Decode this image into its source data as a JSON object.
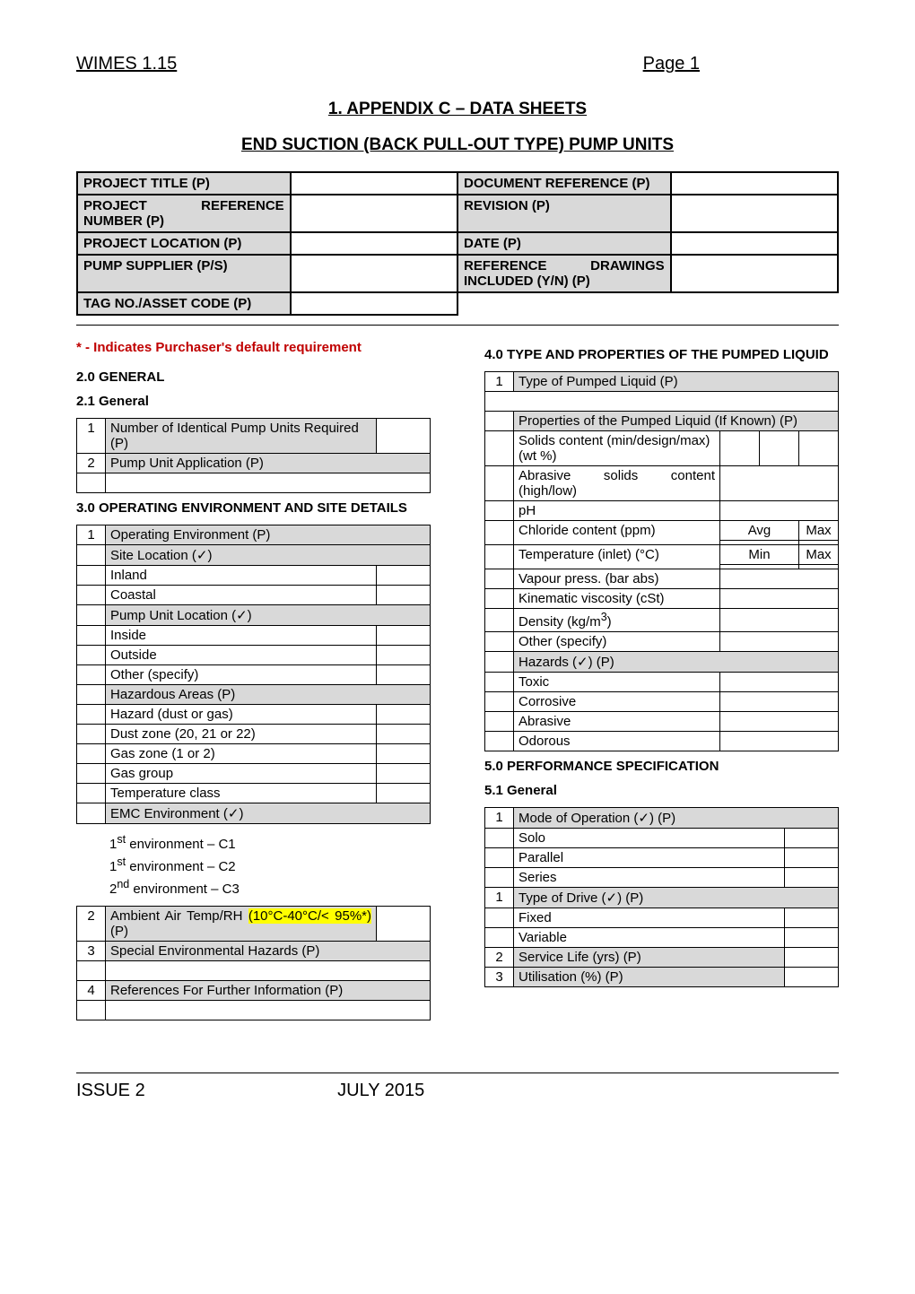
{
  "header": {
    "left": "WIMES 1.15",
    "right": "Page 1"
  },
  "title1": "1.  APPENDIX C – DATA SHEETS",
  "title2": "END SUCTION (BACK PULL-OUT TYPE) PUMP UNITS",
  "project": {
    "rows": [
      {
        "l1": "PROJECT TITLE (P)",
        "l2": "DOCUMENT REFERENCE (P)"
      },
      {
        "l1": "PROJECT REFERENCE NUMBER (P)",
        "l2": "REVISION (P)"
      },
      {
        "l1": "PROJECT LOCATION (P)",
        "l2": "DATE (P)"
      },
      {
        "l1": "PUMP SUPPLIER (P/S)",
        "l2": "REFERENCE DRAWINGS INCLUDED (Y/N) (P)"
      },
      {
        "l1": "TAG NO./ASSET CODE (P)",
        "l2": ""
      }
    ]
  },
  "note": "* - Indicates Purchaser's default requirement",
  "s2": {
    "head": "2.0 GENERAL",
    "sub": "2.1 General",
    "r1n": "1",
    "r1": "Number of Identical Pump Units Required (P)",
    "r2n": "2",
    "r2": "Pump Unit Application (P)"
  },
  "s3": {
    "head": "3.0 OPERATING ENVIRONMENT AND SITE DETAILS",
    "r1n": "1",
    "r1": "Operating Environment (P)",
    "site": "Site Location (✓)",
    "inland": "Inland",
    "coastal": "Coastal",
    "puloc": "Pump Unit Location (✓)",
    "inside": "Inside",
    "outside": "Outside",
    "other": "Other (specify)",
    "haz": "Hazardous Areas (P)",
    "hazdg": "Hazard (dust or gas)",
    "dz": "Dust zone (20, 21 or 22)",
    "gz": "Gas zone (1 or 2)",
    "gg": "Gas group",
    "tc": "Temperature class",
    "emc": "EMC Environment (✓)",
    "e1": "1",
    "e1sup": "st",
    "e1t": " environment – C1",
    "e2": "1",
    "e2sup": "st",
    "e2t": " environment – C2",
    "e3": "2",
    "e3sup": "nd",
    "e3t": " environment – C3",
    "r2n": "2",
    "r2a": "Ambient Air Temp/RH ",
    "r2b": "(10°C-40°C/< 95%*)",
    "r2c": " (P)",
    "r3n": "3",
    "r3": "Special Environmental Hazards (P)",
    "r4n": "4",
    "r4": "References For Further Information (P)"
  },
  "s4": {
    "head": "4.0 TYPE AND PROPERTIES OF THE PUMPED LIQUID",
    "r1n": "1",
    "r1": "Type of Pumped Liquid (P)",
    "props": "Properties of the Pumped Liquid (If Known) (P)",
    "solids": "Solids content (min/design/max) (wt %)",
    "abr": "Abrasive solids content (high/low)",
    "ph": "pH",
    "cl": "Chloride content (ppm)",
    "avg": "Avg",
    "max": "Max",
    "temp": "Temperature (inlet) (°C)",
    "min": "Min",
    "vap": "Vapour press. (bar abs)",
    "kin": "Kinematic viscosity (cSt)",
    "den": "Density (kg/m",
    "den3": "3",
    "denc": ")",
    "oth": "Other (specify)",
    "hazh": "Hazards (✓) (P)",
    "tox": "Toxic",
    "cor": "Corrosive",
    "abrs": "Abrasive",
    "odo": "Odorous"
  },
  "s5": {
    "head": "5.0 PERFORMANCE SPECIFICATION",
    "sub": "5.1 General",
    "r1n": "1",
    "r1": "Mode of Operation (✓) (P)",
    "solo": "Solo",
    "par": "Parallel",
    "ser": "Series",
    "r1bn": "1",
    "r1b": "Type of Drive (✓) (P)",
    "fix": "Fixed",
    "var": "Variable",
    "r2n": "2",
    "r2": "Service Life (yrs) (P)",
    "r3n": "3",
    "r3": "Utilisation (%) (P)"
  },
  "footer": {
    "left": "ISSUE 2",
    "right": "JULY 2015"
  }
}
